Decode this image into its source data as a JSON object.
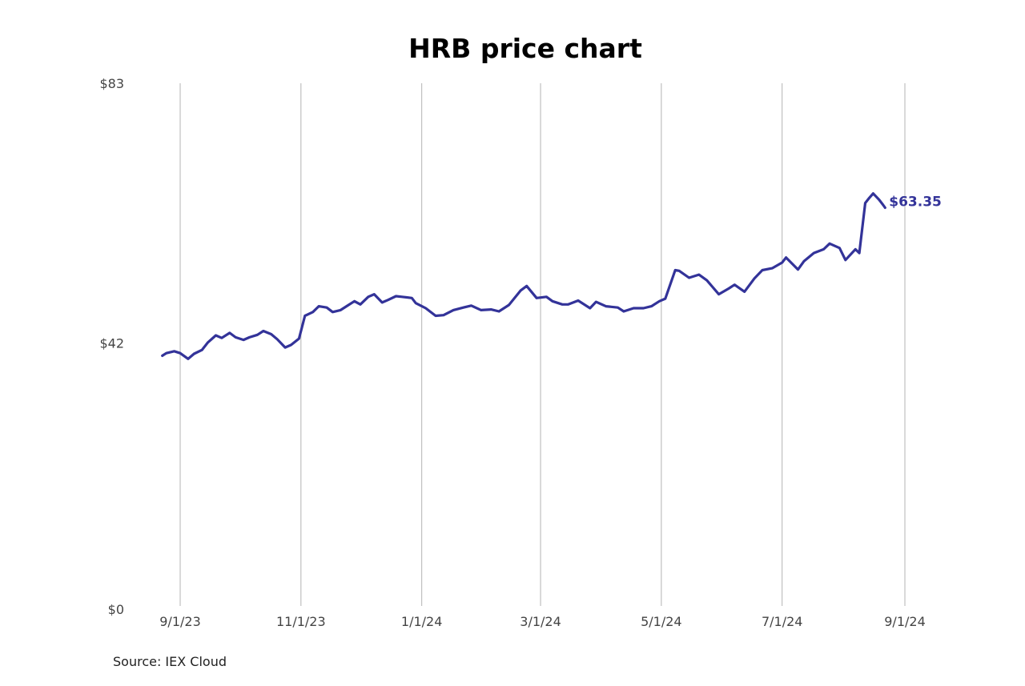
{
  "colors": {
    "series": "#333399",
    "grid": "#b3b3b3",
    "text": "#444444"
  },
  "source": "Source: IEX Cloud",
  "chart_data": {
    "type": "line",
    "title": "HRB price chart",
    "xlabel": "",
    "ylabel": "",
    "grid": "vertical",
    "ylim": [
      0,
      83
    ],
    "xlim": [
      "2023-08-22",
      "2024-09-01"
    ],
    "y_ticks": [
      {
        "value": 0,
        "label": "$0"
      },
      {
        "value": 42,
        "label": "$42"
      },
      {
        "value": 83,
        "label": "$83"
      }
    ],
    "x_ticks": [
      {
        "date": "2023-09-01",
        "label": "9/1/23"
      },
      {
        "date": "2023-11-01",
        "label": "11/1/23"
      },
      {
        "date": "2024-01-01",
        "label": "1/1/24"
      },
      {
        "date": "2024-03-01",
        "label": "3/1/24"
      },
      {
        "date": "2024-05-01",
        "label": "5/1/24"
      },
      {
        "date": "2024-07-01",
        "label": "7/1/24"
      },
      {
        "date": "2024-09-01",
        "label": "9/1/24"
      }
    ],
    "end_label": "$63.35",
    "series": [
      {
        "x": [
          "2023-08-23",
          "2023-08-25",
          "2023-08-29",
          "2023-09-01",
          "2023-09-05",
          "2023-09-08",
          "2023-09-12",
          "2023-09-15",
          "2023-09-19",
          "2023-09-22",
          "2023-09-26",
          "2023-09-29",
          "2023-10-03",
          "2023-10-06",
          "2023-10-10",
          "2023-10-13",
          "2023-10-17",
          "2023-10-20",
          "2023-10-24",
          "2023-10-27",
          "2023-10-31",
          "2023-11-03",
          "2023-11-07",
          "2023-11-10",
          "2023-11-14",
          "2023-11-17",
          "2023-11-21",
          "2023-11-24",
          "2023-11-28",
          "2023-12-01",
          "2023-12-05",
          "2023-12-08",
          "2023-12-12",
          "2023-12-15",
          "2023-12-19",
          "2023-12-22",
          "2023-12-27",
          "2023-12-29",
          "2024-01-03",
          "2024-01-08",
          "2024-01-12",
          "2024-01-17",
          "2024-01-22",
          "2024-01-26",
          "2024-01-31",
          "2024-02-05",
          "2024-02-09",
          "2024-02-14",
          "2024-02-20",
          "2024-02-23",
          "2024-02-28",
          "2024-03-04",
          "2024-03-07",
          "2024-03-12",
          "2024-03-15",
          "2024-03-20",
          "2024-03-26",
          "2024-03-29",
          "2024-04-03",
          "2024-04-09",
          "2024-04-12",
          "2024-04-17",
          "2024-04-22",
          "2024-04-26",
          "2024-04-30",
          "2024-05-03",
          "2024-05-08",
          "2024-05-10",
          "2024-05-15",
          "2024-05-20",
          "2024-05-24",
          "2024-05-30",
          "2024-06-04",
          "2024-06-07",
          "2024-06-12",
          "2024-06-17",
          "2024-06-21",
          "2024-06-26",
          "2024-07-01",
          "2024-07-03",
          "2024-07-09",
          "2024-07-12",
          "2024-07-17",
          "2024-07-22",
          "2024-07-25",
          "2024-07-30",
          "2024-08-02",
          "2024-08-07",
          "2024-08-09",
          "2024-08-12",
          "2024-08-14",
          "2024-08-16",
          "2024-08-19",
          "2024-08-21",
          "2024-08-22"
        ],
        "values": [
          40.0,
          40.4,
          40.7,
          40.4,
          39.5,
          40.3,
          40.9,
          42.1,
          43.2,
          42.8,
          43.6,
          42.9,
          42.5,
          42.9,
          43.3,
          43.9,
          43.4,
          42.6,
          41.3,
          41.7,
          42.7,
          46.3,
          46.9,
          47.8,
          47.6,
          46.9,
          47.2,
          47.8,
          48.6,
          48.1,
          49.3,
          49.7,
          48.4,
          48.8,
          49.4,
          49.3,
          49.1,
          48.3,
          47.5,
          46.3,
          46.4,
          47.2,
          47.6,
          47.9,
          47.2,
          47.3,
          47.0,
          48.0,
          50.3,
          51.0,
          49.1,
          49.3,
          48.6,
          48.1,
          48.1,
          48.7,
          47.5,
          48.5,
          47.8,
          47.6,
          47.0,
          47.5,
          47.5,
          47.8,
          48.6,
          49.0,
          53.5,
          53.4,
          52.3,
          52.8,
          51.9,
          49.7,
          50.6,
          51.2,
          50.1,
          52.2,
          53.5,
          53.8,
          54.7,
          55.5,
          53.6,
          54.9,
          56.2,
          56.8,
          57.7,
          57.0,
          55.1,
          56.8,
          56.2,
          64.1,
          64.9,
          65.6,
          64.6,
          63.8,
          63.35
        ]
      }
    ]
  }
}
